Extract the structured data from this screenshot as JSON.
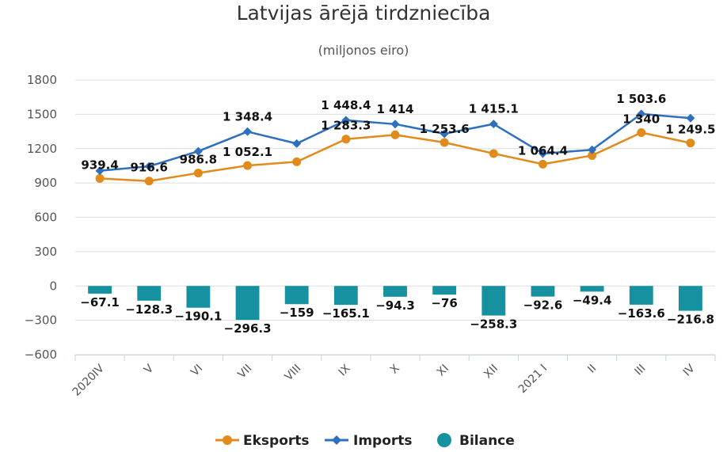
{
  "chart_data": {
    "type": "bar",
    "title": "Latvijas ārējā tirdzniecība",
    "subtitle": "(miljonos eiro)",
    "categories": [
      "2020IV",
      "V",
      "VI",
      "VII",
      "VIII",
      "IX",
      "X",
      "XI",
      "XII",
      "2021 I",
      "II",
      "III",
      "IV"
    ],
    "ylim": [
      -600,
      1800
    ],
    "yticks": [
      -600,
      -300,
      0,
      300,
      600,
      900,
      1200,
      1500,
      1800
    ],
    "ytick_labels": [
      "−600",
      "−300",
      "0",
      "300",
      "600",
      "900",
      "1200",
      "1500",
      "1800"
    ],
    "grid": true,
    "legend_position": "bottom",
    "series": [
      {
        "name": "Eksports",
        "type": "line",
        "color": "#e08b1b",
        "marker": "circle",
        "values": [
          939.4,
          916.6,
          986.8,
          1052.1,
          1085,
          1283.3,
          1320,
          1253.6,
          1157,
          1064.4,
          1140,
          1340,
          1249.5
        ],
        "labels": [
          "939.4",
          "916.6",
          "986.8",
          "1 052.1",
          "",
          "1 283.3",
          "",
          "1 253.6",
          "",
          "1 064.4",
          "",
          "1 340",
          "1 249.5"
        ]
      },
      {
        "name": "Imports",
        "type": "line",
        "color": "#2e6fbf",
        "marker": "diamond",
        "values": [
          1006.5,
          1044.9,
          1176.9,
          1348.4,
          1244,
          1448.4,
          1414,
          1329.6,
          1415.1,
          1157,
          1189.4,
          1503.6,
          1466.3
        ],
        "labels": [
          "",
          "",
          "",
          "1 348.4",
          "",
          "1 448.4",
          "1 414",
          "",
          "1 415.1",
          "",
          "",
          "1 503.6",
          ""
        ]
      },
      {
        "name": "Bilance",
        "type": "bar",
        "color": "#1591a0",
        "marker": "circle",
        "values": [
          -67.1,
          -128.3,
          -190.1,
          -296.3,
          -159,
          -165.1,
          -94.3,
          -76,
          -258.3,
          -92.6,
          -49.4,
          -163.6,
          -216.8
        ],
        "labels": [
          "−67.1",
          "−128.3",
          "−190.1",
          "−296.3",
          "−159",
          "−165.1",
          "−94.3",
          "−76",
          "−258.3",
          "−92.6",
          "−49.4",
          "−163.6",
          "−216.8"
        ]
      }
    ]
  }
}
